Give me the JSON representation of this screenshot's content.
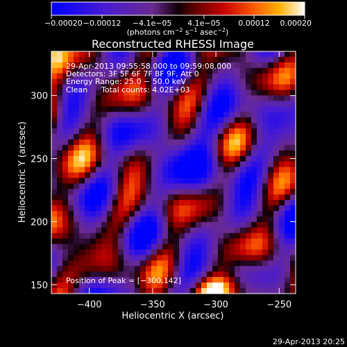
{
  "chart_data": {
    "type": "heatmap",
    "title": "Reconstructed RHESSI Image",
    "xlabel": "Heliocentric X (arcsec)",
    "ylabel": "Heliocentric Y (arcsec)",
    "xlim": [
      -430,
      -237
    ],
    "ylim": [
      143,
      335
    ],
    "x_ticks": [
      -400,
      -350,
      -300,
      -250
    ],
    "x_tick_labels": [
      "−400",
      "−350",
      "−300",
      "−250"
    ],
    "y_ticks": [
      150,
      200,
      250,
      300
    ],
    "y_tick_labels": [
      "150",
      "200",
      "250",
      "300"
    ],
    "colorbar": {
      "range": [
        -0.0002,
        0.0002
      ],
      "ticks": [
        -0.0002,
        -0.00012,
        -4.1e-05,
        4.1e-05,
        0.00012,
        0.0002
      ],
      "tick_labels": [
        "−0.00020",
        "−0.00012",
        "−4.1e−05",
        "4.1e−05",
        "0.00012",
        "0.00020"
      ],
      "units_prefix": "(photons cm",
      "units_exp1": "−2",
      "units_mid1": " s",
      "units_exp2": "−1",
      "units_mid2": " asec",
      "units_exp3": "−2",
      "units_suffix": ")"
    },
    "peak": [
      -300,
      142
    ],
    "grid": false
  },
  "annotations": {
    "line1": "29‑Apr‑2013 09:55:58.000 to 09:59:08.000",
    "line2": "Detectors: 3F 5F 6F 7F 8F 9F, Att 0",
    "line3": "Energy Range: 25.0 − 50.0 keV",
    "line4_a": "Clean",
    "line4_b": "Total counts: 4.02E+03",
    "peak_label": "Position of Peak = [−300,142]"
  },
  "footer": {
    "timestamp": "29‑Apr‑2013 20:25"
  }
}
